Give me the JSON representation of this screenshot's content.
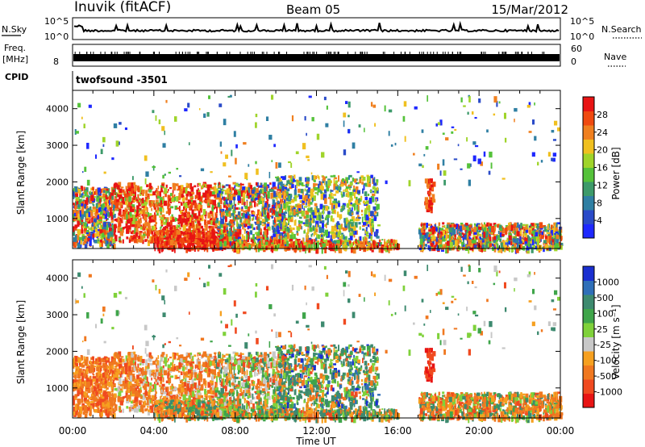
{
  "header": {
    "title": "Inuvik (fitACF)",
    "beam": "Beam 05",
    "date": "15/Mar/2012"
  },
  "noise_panel": {
    "left_label": "N.Sky",
    "left_ticks": [
      "10^5",
      "10^0"
    ],
    "right_ticks": [
      "10^5",
      "10^0"
    ],
    "right_label": "N.Search"
  },
  "freq_panel": {
    "left_label_line1": "Freq.",
    "left_label_line2": "[MHz]",
    "left_tick": "8",
    "right_ticks": [
      "60",
      "0"
    ],
    "right_label": "Nave"
  },
  "cpid_panel": {
    "label": "CPID",
    "text": "twofsound -3501"
  },
  "colors": {
    "power_scale": [
      "#1e28ff",
      "#2a4bc8",
      "#2f7fa3",
      "#3d9a6a",
      "#55c23a",
      "#9fd42a",
      "#f0c020",
      "#f08020",
      "#f04a10",
      "#e81414"
    ],
    "velocity_scale": [
      "#1a2fd0",
      "#2f6fb8",
      "#3d8a6f",
      "#3fa54a",
      "#7fd13a",
      "#c8c8c8",
      "#f6a020",
      "#f07820",
      "#f04a20",
      "#e81414"
    ]
  },
  "chart_data": [
    {
      "type": "heatmap",
      "name": "power",
      "ylabel": "Slant Range [km]",
      "yticks": [
        "4000",
        "3000",
        "2000",
        "1000"
      ],
      "ylim": [
        180,
        4500
      ],
      "xticks": [
        "00:00",
        "04:00",
        "08:00",
        "12:00",
        "16:00",
        "20:00",
        "00:00"
      ],
      "xlim": [
        0,
        24
      ],
      "colorbar": {
        "label": "Power [dB]",
        "ticks": [
          "28",
          "24",
          "20",
          "16",
          "12",
          "8",
          "4"
        ],
        "range": [
          0,
          32
        ]
      }
    },
    {
      "type": "heatmap",
      "name": "velocity",
      "ylabel": "Slant Range [km]",
      "yticks": [
        "4000",
        "3000",
        "2000",
        "1000"
      ],
      "ylim": [
        180,
        4500
      ],
      "xticks": [
        "00:00",
        "04:00",
        "08:00",
        "12:00",
        "16:00",
        "20:00",
        "00:00"
      ],
      "xlim": [
        0,
        24
      ],
      "xlabel": "Time UT",
      "colorbar": {
        "label": "Velocity [m s⁻¹]",
        "ticks": [
          "1000",
          "500",
          "100",
          "25",
          "-25",
          "-100",
          "-500",
          "-1000"
        ]
      }
    }
  ]
}
